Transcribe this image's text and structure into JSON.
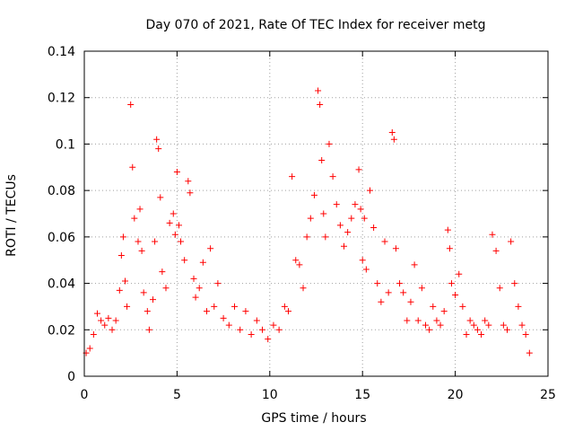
{
  "chart_data": {
    "type": "scatter",
    "title": "Day 070 of 2021, Rate Of TEC Index for receiver metg",
    "xlabel": "GPS time / hours",
    "ylabel": "ROTI / TECUs",
    "xlim": [
      0,
      25
    ],
    "ylim": [
      0,
      0.14
    ],
    "xticks": [
      0,
      5,
      10,
      15,
      20,
      25
    ],
    "yticks": [
      0,
      0.02,
      0.04,
      0.06,
      0.08,
      0.1,
      0.12,
      0.14
    ],
    "xtick_labels": [
      "0",
      "5",
      "10",
      "15",
      "20",
      "25"
    ],
    "ytick_labels": [
      "0",
      "0.02",
      "0.04",
      "0.06",
      "0.08",
      "0.1",
      "0.12",
      "0.14"
    ],
    "grid": true,
    "marker": "+",
    "marker_color": "#ff0000",
    "series": [
      {
        "name": "metg",
        "x": [
          0.1,
          0.3,
          0.5,
          0.7,
          0.9,
          1.1,
          1.3,
          1.5,
          1.7,
          1.9,
          2.0,
          2.1,
          2.2,
          2.3,
          2.5,
          2.6,
          2.7,
          2.9,
          3.0,
          3.1,
          3.2,
          3.4,
          3.5,
          3.7,
          3.8,
          3.9,
          4.0,
          4.1,
          4.2,
          4.4,
          4.6,
          4.8,
          4.9,
          5.0,
          5.1,
          5.2,
          5.4,
          5.6,
          5.7,
          5.9,
          6.0,
          6.2,
          6.4,
          6.6,
          6.8,
          7.0,
          7.2,
          7.5,
          7.8,
          8.1,
          8.4,
          8.7,
          9.0,
          9.3,
          9.6,
          9.9,
          10.2,
          10.5,
          10.8,
          11.0,
          11.2,
          11.4,
          11.6,
          11.8,
          12.0,
          12.2,
          12.4,
          12.6,
          12.7,
          12.8,
          12.9,
          13.0,
          13.2,
          13.4,
          13.6,
          13.8,
          14.0,
          14.2,
          14.4,
          14.6,
          14.8,
          14.9,
          15.0,
          15.1,
          15.2,
          15.4,
          15.6,
          15.8,
          16.0,
          16.2,
          16.4,
          16.6,
          16.7,
          16.8,
          17.0,
          17.2,
          17.4,
          17.6,
          17.8,
          18.0,
          18.2,
          18.4,
          18.6,
          18.8,
          19.0,
          19.2,
          19.4,
          19.6,
          19.7,
          19.8,
          20.0,
          20.2,
          20.4,
          20.6,
          20.8,
          21.0,
          21.2,
          21.4,
          21.6,
          21.8,
          22.0,
          22.2,
          22.4,
          22.6,
          22.8,
          23.0,
          23.2,
          23.4,
          23.6,
          23.8,
          24.0
        ],
        "y": [
          0.01,
          0.012,
          0.018,
          0.027,
          0.024,
          0.022,
          0.025,
          0.02,
          0.024,
          0.037,
          0.052,
          0.06,
          0.041,
          0.03,
          0.117,
          0.09,
          0.068,
          0.058,
          0.072,
          0.054,
          0.036,
          0.028,
          0.02,
          0.033,
          0.058,
          0.102,
          0.098,
          0.077,
          0.045,
          0.038,
          0.066,
          0.07,
          0.061,
          0.088,
          0.065,
          0.058,
          0.05,
          0.084,
          0.079,
          0.042,
          0.034,
          0.038,
          0.049,
          0.028,
          0.055,
          0.03,
          0.04,
          0.025,
          0.022,
          0.03,
          0.02,
          0.028,
          0.018,
          0.024,
          0.02,
          0.016,
          0.022,
          0.02,
          0.03,
          0.028,
          0.086,
          0.05,
          0.048,
          0.038,
          0.06,
          0.068,
          0.078,
          0.123,
          0.117,
          0.093,
          0.07,
          0.06,
          0.1,
          0.086,
          0.074,
          0.065,
          0.056,
          0.062,
          0.068,
          0.074,
          0.089,
          0.072,
          0.05,
          0.068,
          0.046,
          0.08,
          0.064,
          0.04,
          0.032,
          0.058,
          0.036,
          0.105,
          0.102,
          0.055,
          0.04,
          0.036,
          0.024,
          0.032,
          0.048,
          0.024,
          0.038,
          0.022,
          0.02,
          0.03,
          0.024,
          0.022,
          0.028,
          0.063,
          0.055,
          0.04,
          0.035,
          0.044,
          0.03,
          0.018,
          0.024,
          0.022,
          0.02,
          0.018,
          0.024,
          0.022,
          0.061,
          0.054,
          0.038,
          0.022,
          0.02,
          0.058,
          0.04,
          0.03,
          0.022,
          0.018,
          0.01
        ]
      }
    ]
  }
}
